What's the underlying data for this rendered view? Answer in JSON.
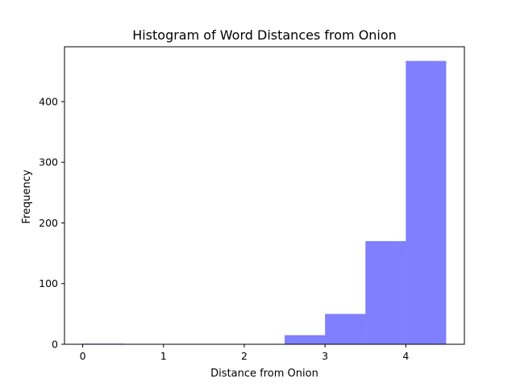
{
  "chart_data": {
    "type": "bar",
    "title": "Histogram of Word Distances from Onion",
    "xlabel": "Distance from Onion",
    "ylabel": "Frequency",
    "bins": [
      {
        "start": 0.0,
        "end": 0.5,
        "count": 1
      },
      {
        "start": 0.5,
        "end": 1.0,
        "count": 0
      },
      {
        "start": 1.0,
        "end": 1.5,
        "count": 0
      },
      {
        "start": 1.5,
        "end": 2.0,
        "count": 0
      },
      {
        "start": 2.0,
        "end": 2.5,
        "count": 0
      },
      {
        "start": 2.5,
        "end": 3.0,
        "count": 15
      },
      {
        "start": 3.0,
        "end": 3.5,
        "count": 50
      },
      {
        "start": 3.5,
        "end": 4.0,
        "count": 170
      },
      {
        "start": 4.0,
        "end": 4.5,
        "count": 467
      }
    ],
    "xlim": [
      -0.225,
      4.725
    ],
    "ylim": [
      0,
      490.35
    ],
    "xticks": [
      0,
      1,
      2,
      3,
      4
    ],
    "yticks": [
      0,
      100,
      200,
      300,
      400
    ],
    "bar_color": "#0000ff",
    "bar_alpha": 0.5,
    "grid": false
  }
}
